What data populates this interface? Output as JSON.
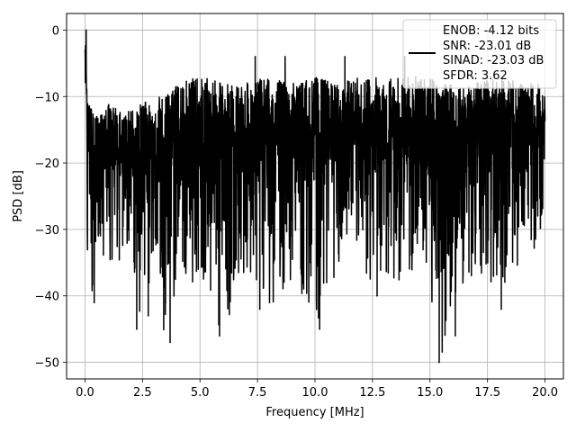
{
  "chart_data": {
    "type": "line",
    "title": "",
    "xlabel": "Frequency [MHz]",
    "ylabel": "PSD [dB]",
    "xlim": [
      -0.8,
      20.8
    ],
    "ylim": [
      -52.5,
      2.5
    ],
    "xticks": [
      0.0,
      2.5,
      5.0,
      7.5,
      10.0,
      12.5,
      15.0,
      17.5,
      20.0
    ],
    "xtick_labels": [
      "0.0",
      "2.5",
      "5.0",
      "7.5",
      "10.0",
      "12.5",
      "15.0",
      "17.5",
      "20.0"
    ],
    "yticks": [
      0,
      -10,
      -20,
      -30,
      -40,
      -50
    ],
    "ytick_labels": [
      "0",
      "−10",
      "−20",
      "−30",
      "−40",
      "−50"
    ],
    "grid": true,
    "legend_position": "top-right",
    "legend_lines": [
      "ENOB: -4.12 bits",
      "SNR: -23.01 dB",
      "SINAD: -23.03 dB",
      "SFDR: 3.62"
    ],
    "series": [
      {
        "color": "#000000",
        "description": "dense noisy spectrum, mostly between -30 and -8 dB",
        "x": [
          0.0,
          0.1,
          0.2,
          0.3,
          0.5,
          1.0,
          1.5,
          2.0,
          2.5,
          3.0,
          3.5,
          4.0,
          5.0,
          6.0,
          7.0,
          8.0,
          9.0,
          10.0,
          11.0,
          12.0,
          13.0,
          14.0,
          15.0,
          15.5,
          16.0,
          17.0,
          18.0,
          19.0,
          20.0
        ],
        "y": [
          0.0,
          -15.0,
          -18.0,
          -22.0,
          -20.0,
          -18.0,
          -20.0,
          -19.0,
          -20.0,
          -19.0,
          -18.0,
          -18.0,
          -17.0,
          -17.0,
          -18.0,
          -17.0,
          -17.0,
          -18.0,
          -17.0,
          -17.0,
          -17.0,
          -17.0,
          -17.0,
          -18.0,
          -17.0,
          -17.0,
          -17.0,
          -17.0,
          -17.0
        ],
        "envelope_max": [
          0.0,
          -10.0,
          -11.0,
          -12.0,
          -13.0,
          -11.0,
          -12.0,
          -12.0,
          -11.0,
          -10.0,
          -10.0,
          -8.0,
          -7.0,
          -8.0,
          -8.0,
          -7.0,
          -8.0,
          -7.0,
          -8.0,
          -7.0,
          -7.0,
          -7.0,
          -7.0,
          -8.0,
          -8.0,
          -8.0,
          -7.0,
          -8.0,
          -8.0
        ],
        "envelope_min": [
          -15.0,
          -35.0,
          -30.0,
          -41.0,
          -35.0,
          -35.0,
          -35.0,
          -35.0,
          -45.0,
          -35.0,
          -47.0,
          -38.0,
          -38.0,
          -46.0,
          -36.0,
          -42.0,
          -38.0,
          -45.0,
          -36.0,
          -38.0,
          -38.0,
          -38.0,
          -40.0,
          -50.0,
          -40.0,
          -38.0,
          -38.0,
          -38.0,
          -30.0
        ],
        "deep_dips": [
          [
            0.4,
            -41.0
          ],
          [
            2.25,
            -45.0
          ],
          [
            2.75,
            -43.0
          ],
          [
            3.5,
            -41.0
          ],
          [
            3.7,
            -47.0
          ],
          [
            5.85,
            -46.0
          ],
          [
            7.6,
            -42.0
          ],
          [
            9.8,
            -35.0
          ],
          [
            10.2,
            -45.0
          ],
          [
            12.7,
            -40.0
          ],
          [
            15.4,
            -50.0
          ],
          [
            16.1,
            -46.0
          ],
          [
            18.1,
            -42.0
          ]
        ],
        "peak_spikes": [
          [
            0.05,
            0.0
          ],
          [
            7.4,
            -4.0
          ],
          [
            8.7,
            -4.0
          ],
          [
            11.3,
            -4.0
          ],
          [
            13.9,
            -4.0
          ]
        ]
      }
    ]
  }
}
